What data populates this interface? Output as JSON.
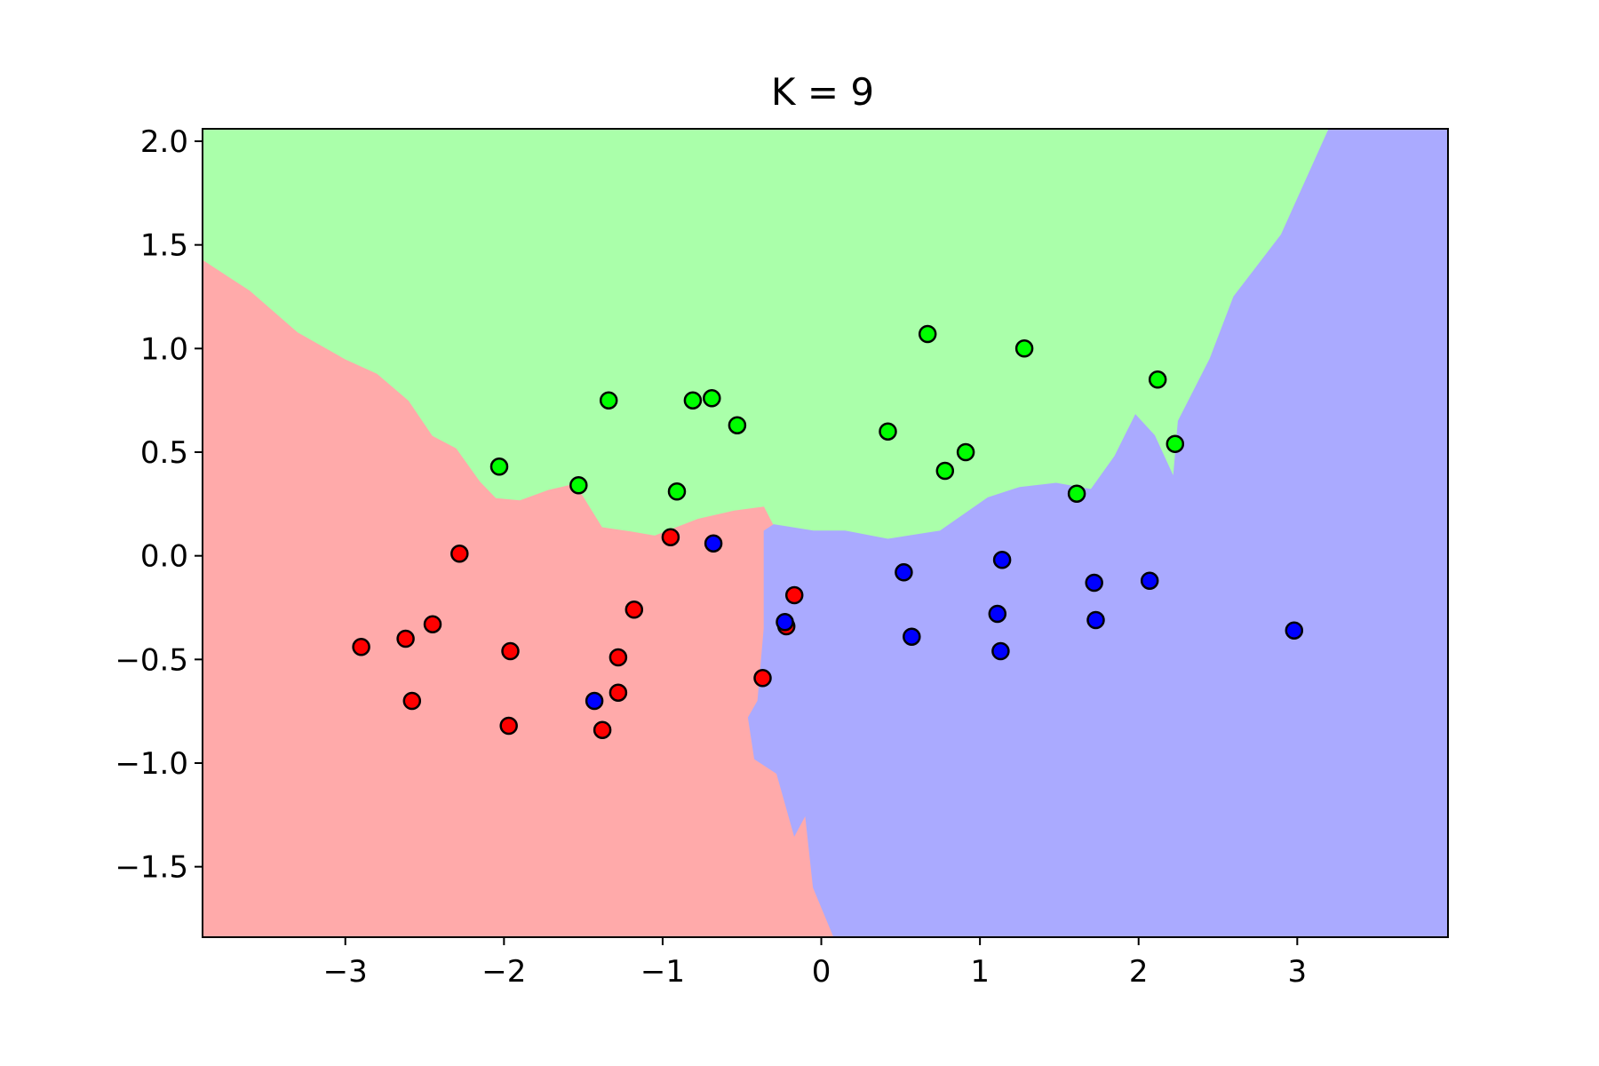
{
  "chart_data": {
    "type": "scatter",
    "title": "K = 9",
    "xlabel": "",
    "ylabel": "",
    "xlim": [
      -3.9,
      3.95
    ],
    "ylim": [
      -1.84,
      2.06
    ],
    "grid": false,
    "legend": "none",
    "x_ticks": [
      -3,
      -2,
      -1,
      0,
      1,
      2,
      3
    ],
    "x_tick_labels": [
      "−3",
      "−2",
      "−1",
      "0",
      "1",
      "2",
      "3"
    ],
    "y_ticks": [
      -1.5,
      -1.0,
      -0.5,
      0.0,
      0.5,
      1.0,
      1.5,
      2.0
    ],
    "y_tick_labels": [
      "−1.5",
      "−1.0",
      "−0.5",
      "0.0",
      "0.5",
      "1.0",
      "1.5",
      "2.0"
    ],
    "decision_regions": [
      {
        "class": "red",
        "color": "#ffaaaa",
        "boundary": [
          [
            -3.9,
            1.43
          ],
          [
            -3.6,
            1.28
          ],
          [
            -3.3,
            1.08
          ],
          [
            -3.0,
            0.95
          ],
          [
            -2.8,
            0.88
          ],
          [
            -2.6,
            0.75
          ],
          [
            -2.45,
            0.58
          ],
          [
            -2.3,
            0.52
          ],
          [
            -2.15,
            0.36
          ],
          [
            -2.05,
            0.28
          ],
          [
            -1.9,
            0.27
          ],
          [
            -1.72,
            0.32
          ],
          [
            -1.55,
            0.35
          ],
          [
            -1.38,
            0.14
          ],
          [
            -1.2,
            0.12
          ],
          [
            -1.05,
            0.1
          ],
          [
            -0.78,
            0.18
          ],
          [
            -0.55,
            0.22
          ],
          [
            -0.36,
            0.24
          ],
          [
            -0.3,
            0.15
          ],
          [
            -0.05,
            0.12
          ],
          [
            0.15,
            0.12
          ],
          [
            0.42,
            0.08
          ],
          [
            0.62,
            0.04
          ],
          [
            0.72,
            0.08
          ],
          [
            0.72,
            0.09
          ],
          [
            0.1,
            -0.1
          ],
          [
            -0.05,
            -0.2
          ],
          [
            -0.02,
            -0.4
          ],
          [
            -0.2,
            -0.55
          ],
          [
            -0.32,
            -0.75
          ],
          [
            -0.28,
            -1.05
          ],
          [
            -0.17,
            -1.35
          ],
          [
            -0.1,
            -1.25
          ],
          [
            -0.05,
            -1.6
          ],
          [
            0.08,
            -1.84
          ],
          [
            -3.9,
            -1.84
          ]
        ]
      },
      {
        "class": "green",
        "color": "#aaffaa",
        "boundary": [
          [
            -3.9,
            2.06
          ],
          [
            3.2,
            2.06
          ],
          [
            2.9,
            1.55
          ],
          [
            2.6,
            1.25
          ],
          [
            2.45,
            0.95
          ],
          [
            2.25,
            0.65
          ],
          [
            2.22,
            0.38
          ],
          [
            2.1,
            0.58
          ],
          [
            1.98,
            0.68
          ],
          [
            1.85,
            0.48
          ],
          [
            1.7,
            0.32
          ],
          [
            1.48,
            0.35
          ],
          [
            1.25,
            0.33
          ],
          [
            1.05,
            0.28
          ],
          [
            0.75,
            0.12
          ],
          [
            0.42,
            0.08
          ],
          [
            0.15,
            0.12
          ],
          [
            -0.05,
            0.12
          ],
          [
            -0.3,
            0.15
          ],
          [
            -0.36,
            0.24
          ],
          [
            -0.55,
            0.22
          ],
          [
            -0.78,
            0.18
          ],
          [
            -1.05,
            0.1
          ],
          [
            -1.2,
            0.12
          ],
          [
            -1.38,
            0.14
          ],
          [
            -1.55,
            0.35
          ],
          [
            -1.72,
            0.32
          ],
          [
            -1.9,
            0.27
          ],
          [
            -2.05,
            0.28
          ],
          [
            -2.15,
            0.36
          ],
          [
            -2.3,
            0.52
          ],
          [
            -2.45,
            0.58
          ],
          [
            -2.6,
            0.75
          ],
          [
            -2.8,
            0.88
          ],
          [
            -3.0,
            0.95
          ],
          [
            -3.3,
            1.08
          ],
          [
            -3.6,
            1.28
          ],
          [
            -3.9,
            1.43
          ]
        ]
      },
      {
        "class": "blue",
        "color": "#aaaaff",
        "boundary": [
          [
            0.08,
            -1.84
          ],
          [
            3.95,
            -1.84
          ],
          [
            3.95,
            2.06
          ],
          [
            3.2,
            2.06
          ],
          [
            2.9,
            1.55
          ],
          [
            2.6,
            1.25
          ],
          [
            2.45,
            0.95
          ],
          [
            2.25,
            0.65
          ],
          [
            2.22,
            0.38
          ],
          [
            2.1,
            0.58
          ],
          [
            1.98,
            0.68
          ],
          [
            1.85,
            0.48
          ],
          [
            1.7,
            0.32
          ],
          [
            1.48,
            0.35
          ],
          [
            1.25,
            0.33
          ],
          [
            1.05,
            0.28
          ],
          [
            0.75,
            0.12
          ],
          [
            0.42,
            0.08
          ],
          [
            0.15,
            0.12
          ],
          [
            -0.05,
            0.12
          ],
          [
            -0.3,
            0.15
          ],
          [
            -0.36,
            0.12
          ],
          [
            -0.36,
            -0.35
          ],
          [
            -0.4,
            -0.7
          ],
          [
            -0.46,
            -0.78
          ],
          [
            -0.42,
            -0.98
          ],
          [
            -0.28,
            -1.05
          ],
          [
            -0.17,
            -1.35
          ],
          [
            -0.1,
            -1.25
          ],
          [
            -0.05,
            -1.6
          ]
        ]
      }
    ],
    "series": [
      {
        "name": "",
        "color": "#ff0000",
        "points": [
          [
            -2.28,
            0.01
          ],
          [
            -2.9,
            -0.44
          ],
          [
            -2.62,
            -0.4
          ],
          [
            -2.45,
            -0.33
          ],
          [
            -2.58,
            -0.7
          ],
          [
            -1.96,
            -0.46
          ],
          [
            -1.97,
            -0.82
          ],
          [
            -1.28,
            -0.49
          ],
          [
            -1.18,
            -0.26
          ],
          [
            -1.28,
            -0.66
          ],
          [
            -1.38,
            -0.84
          ],
          [
            -0.95,
            0.09
          ],
          [
            -0.37,
            -0.59
          ],
          [
            -0.22,
            -0.34
          ],
          [
            -0.17,
            -0.19
          ]
        ]
      },
      {
        "name": "",
        "color": "#00ff00",
        "points": [
          [
            -2.03,
            0.43
          ],
          [
            -1.53,
            0.34
          ],
          [
            -1.34,
            0.75
          ],
          [
            -0.81,
            0.75
          ],
          [
            -0.69,
            0.76
          ],
          [
            -0.53,
            0.63
          ],
          [
            -0.91,
            0.31
          ],
          [
            0.42,
            0.6
          ],
          [
            0.67,
            1.07
          ],
          [
            0.78,
            0.41
          ],
          [
            0.91,
            0.5
          ],
          [
            1.28,
            1.0
          ],
          [
            1.61,
            0.3
          ],
          [
            2.12,
            0.85
          ],
          [
            2.23,
            0.54
          ]
        ]
      },
      {
        "name": "",
        "color": "#0000ff",
        "points": [
          [
            -0.68,
            0.06
          ],
          [
            -1.43,
            -0.7
          ],
          [
            -0.23,
            -0.32
          ],
          [
            0.52,
            -0.08
          ],
          [
            0.57,
            -0.39
          ],
          [
            1.11,
            -0.28
          ],
          [
            1.14,
            -0.02
          ],
          [
            1.13,
            -0.46
          ],
          [
            1.72,
            -0.13
          ],
          [
            1.73,
            -0.31
          ],
          [
            2.07,
            -0.12
          ],
          [
            2.98,
            -0.36
          ]
        ]
      }
    ]
  }
}
